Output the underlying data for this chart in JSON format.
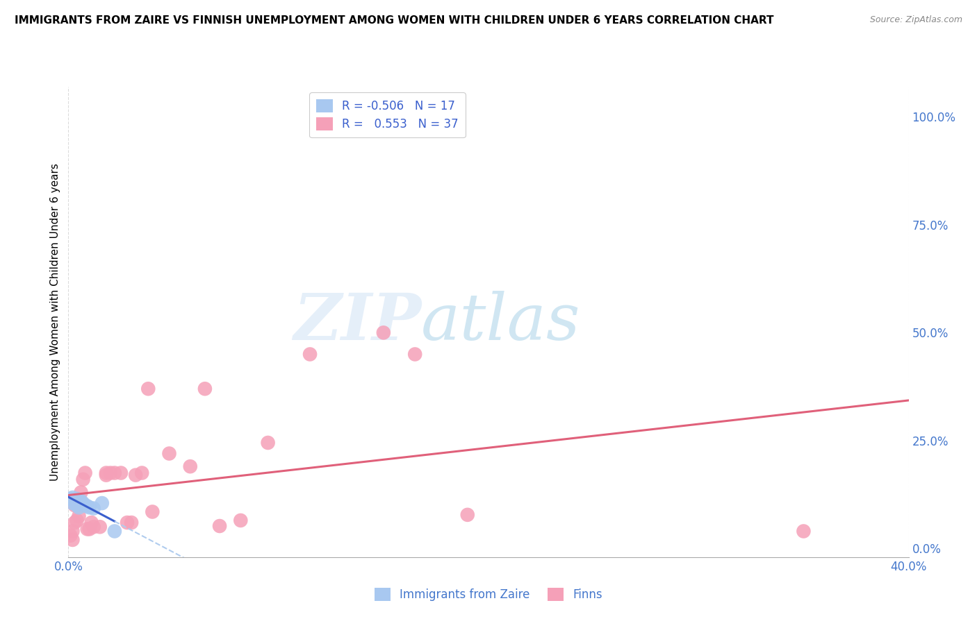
{
  "title": "IMMIGRANTS FROM ZAIRE VS FINNISH UNEMPLOYMENT AMONG WOMEN WITH CHILDREN UNDER 6 YEARS CORRELATION CHART",
  "source": "Source: ZipAtlas.com",
  "ylabel": "Unemployment Among Women with Children Under 6 years",
  "xlim": [
    0.0,
    0.4
  ],
  "ylim": [
    -0.02,
    1.07
  ],
  "right_yticks": [
    0.0,
    0.25,
    0.5,
    0.75,
    1.0
  ],
  "right_yticklabels": [
    "0.0%",
    "25.0%",
    "50.0%",
    "75.0%",
    "100.0%"
  ],
  "xtick_vals": [
    0.0,
    0.4
  ],
  "xticklabels": [
    "0.0%",
    "40.0%"
  ],
  "blue_scatter": [
    [
      0.001,
      0.115
    ],
    [
      0.002,
      0.118
    ],
    [
      0.002,
      0.105
    ],
    [
      0.003,
      0.112
    ],
    [
      0.003,
      0.108
    ],
    [
      0.004,
      0.115
    ],
    [
      0.004,
      0.1
    ],
    [
      0.005,
      0.108
    ],
    [
      0.005,
      0.095
    ],
    [
      0.006,
      0.11
    ],
    [
      0.007,
      0.105
    ],
    [
      0.008,
      0.1
    ],
    [
      0.009,
      0.098
    ],
    [
      0.01,
      0.095
    ],
    [
      0.012,
      0.093
    ],
    [
      0.016,
      0.105
    ],
    [
      0.022,
      0.04
    ]
  ],
  "pink_scatter": [
    [
      0.001,
      0.03
    ],
    [
      0.002,
      0.02
    ],
    [
      0.002,
      0.04
    ],
    [
      0.003,
      0.06
    ],
    [
      0.003,
      0.1
    ],
    [
      0.004,
      0.065
    ],
    [
      0.005,
      0.075
    ],
    [
      0.006,
      0.13
    ],
    [
      0.007,
      0.16
    ],
    [
      0.008,
      0.175
    ],
    [
      0.009,
      0.045
    ],
    [
      0.01,
      0.045
    ],
    [
      0.011,
      0.06
    ],
    [
      0.012,
      0.05
    ],
    [
      0.015,
      0.05
    ],
    [
      0.018,
      0.17
    ],
    [
      0.018,
      0.175
    ],
    [
      0.02,
      0.175
    ],
    [
      0.022,
      0.175
    ],
    [
      0.025,
      0.175
    ],
    [
      0.028,
      0.06
    ],
    [
      0.03,
      0.06
    ],
    [
      0.032,
      0.17
    ],
    [
      0.035,
      0.175
    ],
    [
      0.038,
      0.37
    ],
    [
      0.04,
      0.085
    ],
    [
      0.048,
      0.22
    ],
    [
      0.058,
      0.19
    ],
    [
      0.065,
      0.37
    ],
    [
      0.072,
      0.052
    ],
    [
      0.082,
      0.065
    ],
    [
      0.095,
      0.245
    ],
    [
      0.115,
      0.45
    ],
    [
      0.15,
      0.5
    ],
    [
      0.165,
      0.45
    ],
    [
      0.19,
      0.078
    ],
    [
      0.35,
      0.04
    ]
  ],
  "blue_color": "#a8c8f0",
  "pink_color": "#f5a0b8",
  "blue_line_color": "#3a5fcd",
  "pink_line_color": "#e0607a",
  "blue_dashed_color": "#b0ccee",
  "watermark_zip": "ZIP",
  "watermark_atlas": "atlas",
  "background": "#ffffff",
  "grid_color": "#d8d8d8",
  "legend_r_color": "#3a5fcd",
  "legend_n_color": "#3a5fcd",
  "tick_color": "#4477cc",
  "ylabel_color": "#000000"
}
